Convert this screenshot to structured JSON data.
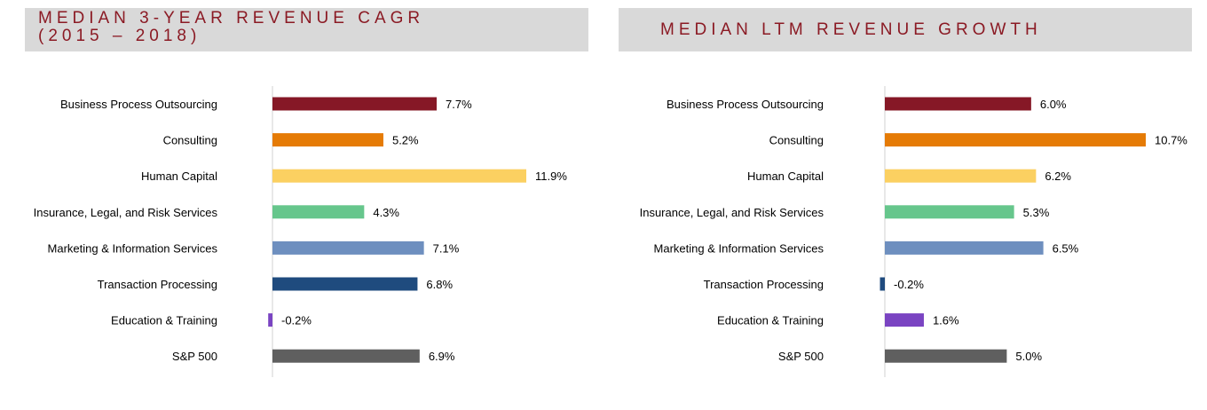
{
  "chart_data": [
    {
      "type": "bar",
      "orientation": "horizontal",
      "title": "MEDIAN 3-YEAR REVENUE CAGR\n(2015 – 2018)",
      "categories": [
        "Business Process Outsourcing",
        "Consulting",
        "Human Capital",
        "Insurance, Legal, and Risk Services",
        "Marketing & Information Services",
        "Transaction Processing",
        "Education & Training",
        "S&P 500"
      ],
      "values": [
        7.7,
        5.2,
        11.9,
        4.3,
        7.1,
        6.8,
        -0.2,
        6.9
      ],
      "value_labels": [
        "7.7%",
        "5.2%",
        "11.9%",
        "4.3%",
        "7.1%",
        "6.8%",
        "-0.2%",
        "6.9%"
      ],
      "colors": [
        "#861826",
        "#e57b06",
        "#fbd061",
        "#66c68c",
        "#6e8fbf",
        "#1f4b7e",
        "#7a44c2",
        "#5f5f5f"
      ],
      "xlim": [
        -0.2,
        11.9
      ],
      "grid": false,
      "legend": "none"
    },
    {
      "type": "bar",
      "orientation": "horizontal",
      "title": "MEDIAN LTM REVENUE GROWTH",
      "categories": [
        "Business Process Outsourcing",
        "Consulting",
        "Human Capital",
        "Insurance, Legal, and Risk Services",
        "Marketing & Information Services",
        "Transaction Processing",
        "Education & Training",
        "S&P 500"
      ],
      "values": [
        6.0,
        10.7,
        6.2,
        5.3,
        6.5,
        -0.2,
        1.6,
        5.0
      ],
      "value_labels": [
        "6.0%",
        "10.7%",
        "6.2%",
        "5.3%",
        "6.5%",
        "-0.2%",
        "1.6%",
        "5.0%"
      ],
      "colors": [
        "#861826",
        "#e57b06",
        "#fbd061",
        "#66c68c",
        "#6e8fbf",
        "#1f4b7e",
        "#7a44c2",
        "#5f5f5f"
      ],
      "xlim": [
        -0.2,
        10.7
      ],
      "grid": false,
      "legend": "none"
    }
  ]
}
